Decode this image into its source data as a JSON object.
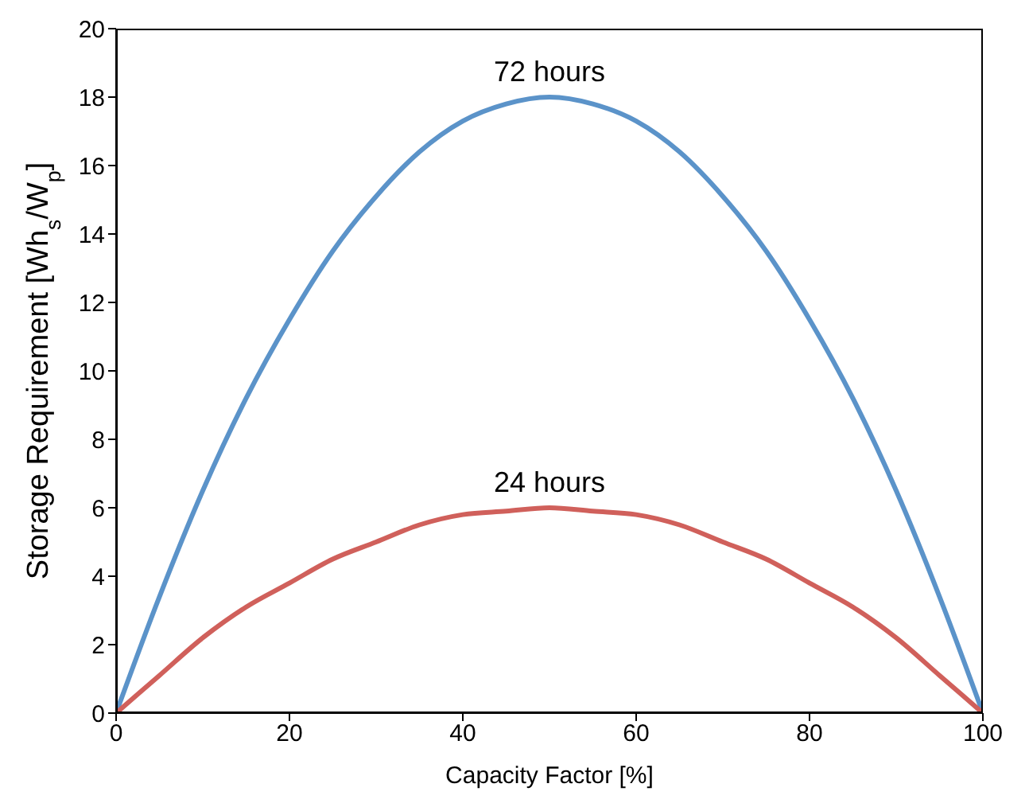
{
  "chart_data": {
    "type": "line",
    "xlabel": "Capacity Factor [%]",
    "ylabel": "Storage Requirement [Wh$_{s}$/W$_{p}$]",
    "x": [
      0,
      5,
      10,
      15,
      20,
      25,
      30,
      35,
      40,
      45,
      50,
      55,
      60,
      65,
      70,
      75,
      80,
      85,
      90,
      95,
      100
    ],
    "series": [
      {
        "name": "72 hours",
        "color": "#5b93c9",
        "values": [
          0,
          3.4,
          6.5,
          9.2,
          11.5,
          13.5,
          15.1,
          16.4,
          17.3,
          17.8,
          18,
          17.8,
          17.3,
          16.4,
          15.1,
          13.5,
          11.5,
          9.2,
          6.5,
          3.4,
          0
        ]
      },
      {
        "name": "24 hours",
        "color": "#d0605b",
        "values": [
          0,
          1.1,
          2.2,
          3.1,
          3.8,
          4.5,
          5.0,
          5.5,
          5.8,
          5.9,
          6,
          5.9,
          5.8,
          5.5,
          5.0,
          4.5,
          3.8,
          3.1,
          2.2,
          1.1,
          0
        ]
      }
    ],
    "xlim": [
      0,
      100
    ],
    "xticks": [
      0,
      20,
      40,
      60,
      80,
      100
    ],
    "ylim": [
      0,
      20
    ],
    "yticks": [
      0,
      2,
      4,
      6,
      8,
      10,
      12,
      14,
      16,
      18,
      20
    ],
    "grid": false,
    "legend": false,
    "marker": "none",
    "line_style": "solid"
  }
}
